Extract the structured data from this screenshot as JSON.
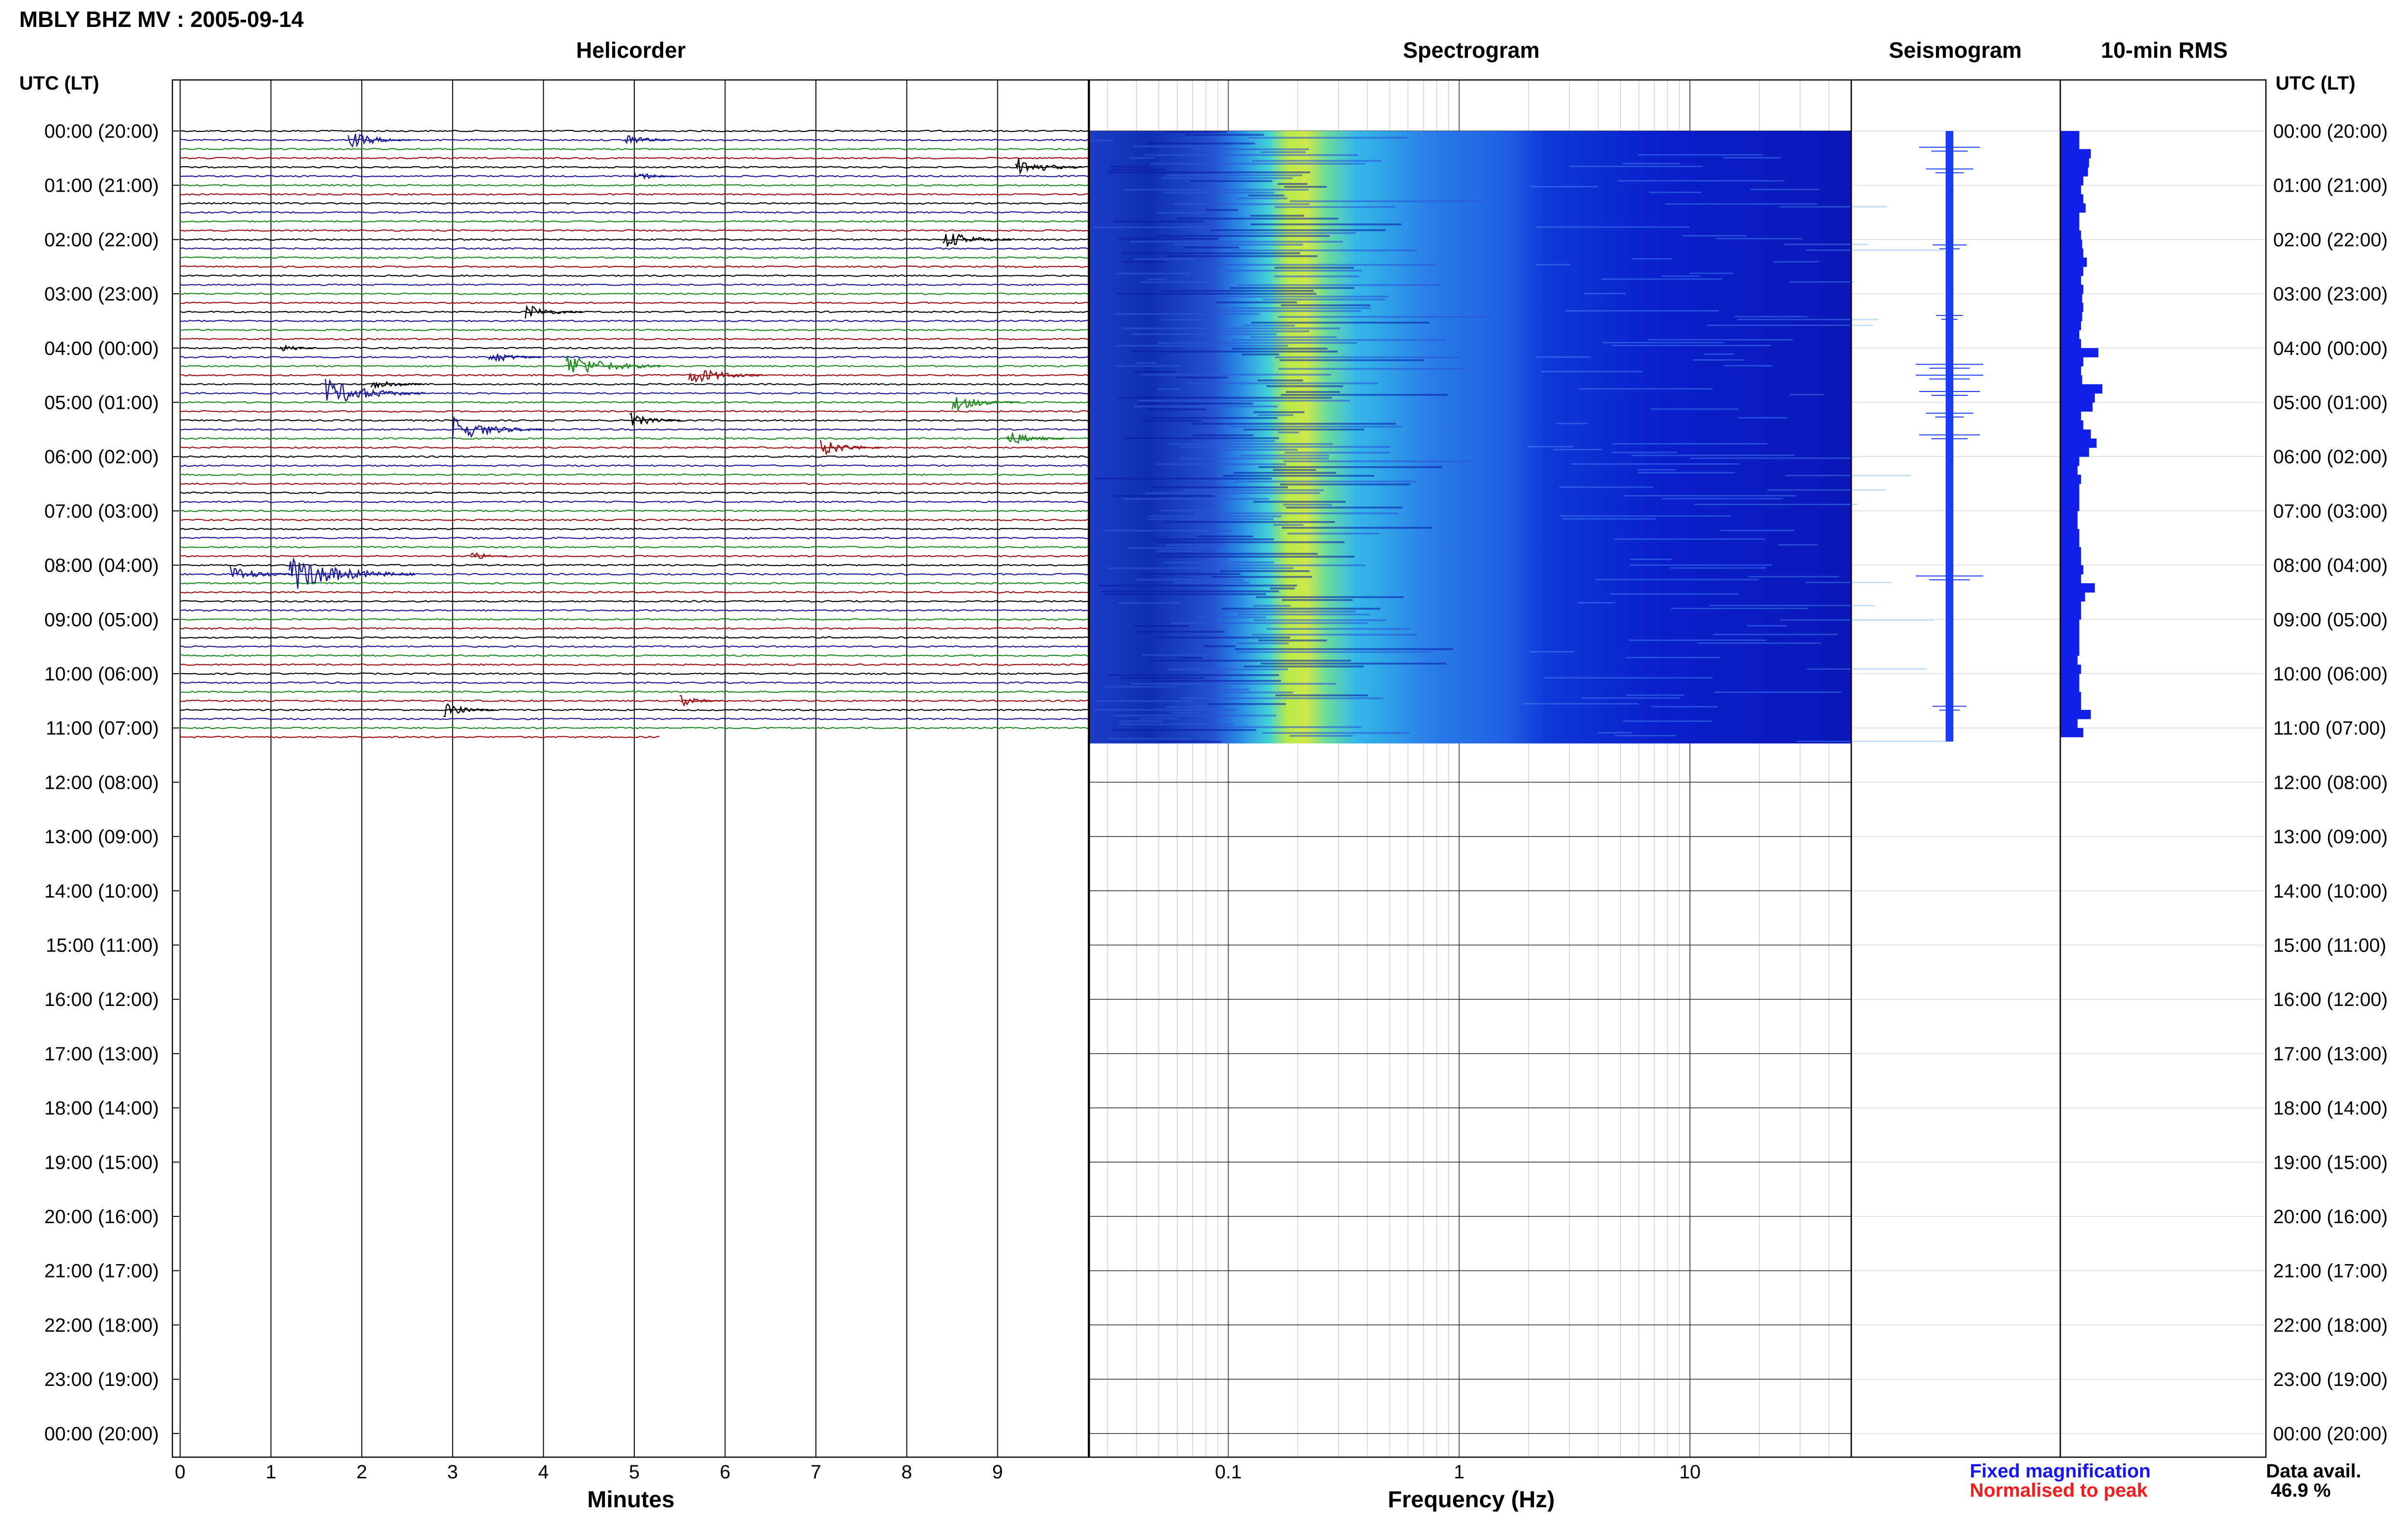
{
  "header": {
    "title": "MBLY BHZ MV : 2005-09-14"
  },
  "panels": {
    "helicorder": "Helicorder",
    "spectrogram": "Spectrogram",
    "seismogram": "Seismogram",
    "rms": "10-min RMS"
  },
  "axes": {
    "time_axis_label_left": "UTC (LT)",
    "time_axis_label_right": "UTC (LT)",
    "helicorder_xlabel": "Minutes",
    "spectrogram_xlabel": "Frequency (Hz)"
  },
  "legend": {
    "fixed_magnification": "Fixed magnification",
    "normalised_to_peak": "Normalised to peak",
    "fixed_color": "#1414ff",
    "normalised_color": "#ff1a1a"
  },
  "data_availability": {
    "label": "Data avail.",
    "value": "46.9 %"
  },
  "colors": {
    "trace_cycle": [
      "#000000",
      "#1a1a9e",
      "#1f8a1f",
      "#a01010"
    ],
    "spectrogram_low": "#0a1fd6",
    "spectrogram_peak": "#e6ec3a",
    "seismogram": "#1a3cff",
    "rms_bars": "#1020e8"
  },
  "chart_data": [
    {
      "type": "line",
      "name_panel": "Helicorder",
      "xlabel": "Minutes",
      "xlim": [
        0,
        10
      ],
      "x_ticks": [
        "0",
        "1",
        "2",
        "3",
        "4",
        "5",
        "6",
        "7",
        "8",
        "9"
      ],
      "y_ticks_left": [
        "00:00 (20:00)",
        "01:00 (21:00)",
        "02:00 (22:00)",
        "03:00 (23:00)",
        "04:00 (00:00)",
        "05:00 (01:00)",
        "06:00 (02:00)",
        "07:00 (03:00)",
        "08:00 (04:00)",
        "09:00 (05:00)",
        "10:00 (06:00)",
        "11:00 (07:00)",
        "12:00 (08:00)",
        "13:00 (09:00)",
        "14:00 (10:00)",
        "15:00 (11:00)",
        "16:00 (12:00)",
        "17:00 (13:00)",
        "18:00 (14:00)",
        "19:00 (15:00)",
        "20:00 (16:00)",
        "21:00 (17:00)",
        "22:00 (18:00)",
        "23:00 (19:00)",
        "00:00 (20:00)"
      ],
      "traces_per_hour": 6,
      "data_end_hours": 11.25,
      "events": [
        {
          "hour": 0.2,
          "minute": 1.85,
          "amplitude": 1.2
        },
        {
          "hour": 0.1,
          "minute": 4.9,
          "amplitude": 0.9
        },
        {
          "hour": 0.6,
          "minute": 9.2,
          "amplitude": 1.3
        },
        {
          "hour": 0.8,
          "minute": 5.0,
          "amplitude": 0.8
        },
        {
          "hour": 2.0,
          "minute": 8.4,
          "amplitude": 1.3
        },
        {
          "hour": 3.3,
          "minute": 3.8,
          "amplitude": 1.1
        },
        {
          "hour": 4.0,
          "minute": 1.1,
          "amplitude": 0.7
        },
        {
          "hour": 4.15,
          "minute": 3.4,
          "amplitude": 1.0
        },
        {
          "hour": 4.35,
          "minute": 4.25,
          "amplitude": 1.8
        },
        {
          "hour": 4.5,
          "minute": 5.6,
          "amplitude": 1.4
        },
        {
          "hour": 4.65,
          "minute": 2.1,
          "amplitude": 1.0
        },
        {
          "hour": 4.8,
          "minute": 1.6,
          "amplitude": 1.9
        },
        {
          "hour": 5.0,
          "minute": 8.5,
          "amplitude": 1.3
        },
        {
          "hour": 5.3,
          "minute": 4.95,
          "amplitude": 1.0
        },
        {
          "hour": 5.5,
          "minute": 3.0,
          "amplitude": 1.7
        },
        {
          "hour": 5.6,
          "minute": 9.1,
          "amplitude": 1.1
        },
        {
          "hour": 5.8,
          "minute": 7.05,
          "amplitude": 1.2
        },
        {
          "hour": 7.8,
          "minute": 3.2,
          "amplitude": 0.7
        },
        {
          "hour": 8.15,
          "minute": 0.55,
          "amplitude": 1.2
        },
        {
          "hour": 8.15,
          "minute": 1.2,
          "amplitude": 2.4
        },
        {
          "hour": 10.5,
          "minute": 5.5,
          "amplitude": 0.8
        },
        {
          "hour": 10.65,
          "minute": 2.9,
          "amplitude": 1.0
        }
      ]
    },
    {
      "type": "heatmap",
      "name_panel": "Spectrogram",
      "xlabel": "Frequency (Hz)",
      "x_scale": "log",
      "xlim": [
        0.025,
        50
      ],
      "x_ticks": [
        "0.1",
        "1",
        "10"
      ],
      "data_end_hours": 11.25,
      "peak_frequency_hz": 0.25,
      "colormap": "jet (blue to yellow)"
    },
    {
      "type": "line",
      "name_panel": "Seismogram",
      "data_end_hours": 11.25,
      "bursts": [
        {
          "hour": 0.3,
          "amplitude": 0.9
        },
        {
          "hour": 0.7,
          "amplitude": 0.7
        },
        {
          "hour": 2.1,
          "amplitude": 0.5
        },
        {
          "hour": 3.4,
          "amplitude": 0.4
        },
        {
          "hour": 4.3,
          "amplitude": 1.0
        },
        {
          "hour": 4.5,
          "amplitude": 1.0
        },
        {
          "hour": 4.8,
          "amplitude": 0.9
        },
        {
          "hour": 5.2,
          "amplitude": 0.7
        },
        {
          "hour": 5.6,
          "amplitude": 0.9
        },
        {
          "hour": 8.2,
          "amplitude": 1.0
        },
        {
          "hour": 10.6,
          "amplitude": 0.5
        }
      ]
    },
    {
      "type": "bar",
      "name_panel": "10-min RMS",
      "orientation": "horizontal",
      "bin_minutes": 10,
      "values": [
        0.33,
        0.33,
        0.53,
        0.5,
        0.48,
        0.4,
        0.36,
        0.4,
        0.44,
        0.33,
        0.33,
        0.36,
        0.38,
        0.4,
        0.46,
        0.4,
        0.36,
        0.4,
        0.38,
        0.4,
        0.38,
        0.36,
        0.33,
        0.36,
        0.66,
        0.4,
        0.36,
        0.38,
        0.73,
        0.6,
        0.56,
        0.36,
        0.4,
        0.53,
        0.63,
        0.5,
        0.33,
        0.3,
        0.36,
        0.33,
        0.33,
        0.33,
        0.3,
        0.3,
        0.33,
        0.33,
        0.36,
        0.36,
        0.4,
        0.36,
        0.6,
        0.43,
        0.36,
        0.36,
        0.33,
        0.33,
        0.33,
        0.33,
        0.3,
        0.36,
        0.33,
        0.33,
        0.36,
        0.36,
        0.53,
        0.3,
        0.4
      ],
      "xlim": [
        0,
        1
      ]
    }
  ]
}
